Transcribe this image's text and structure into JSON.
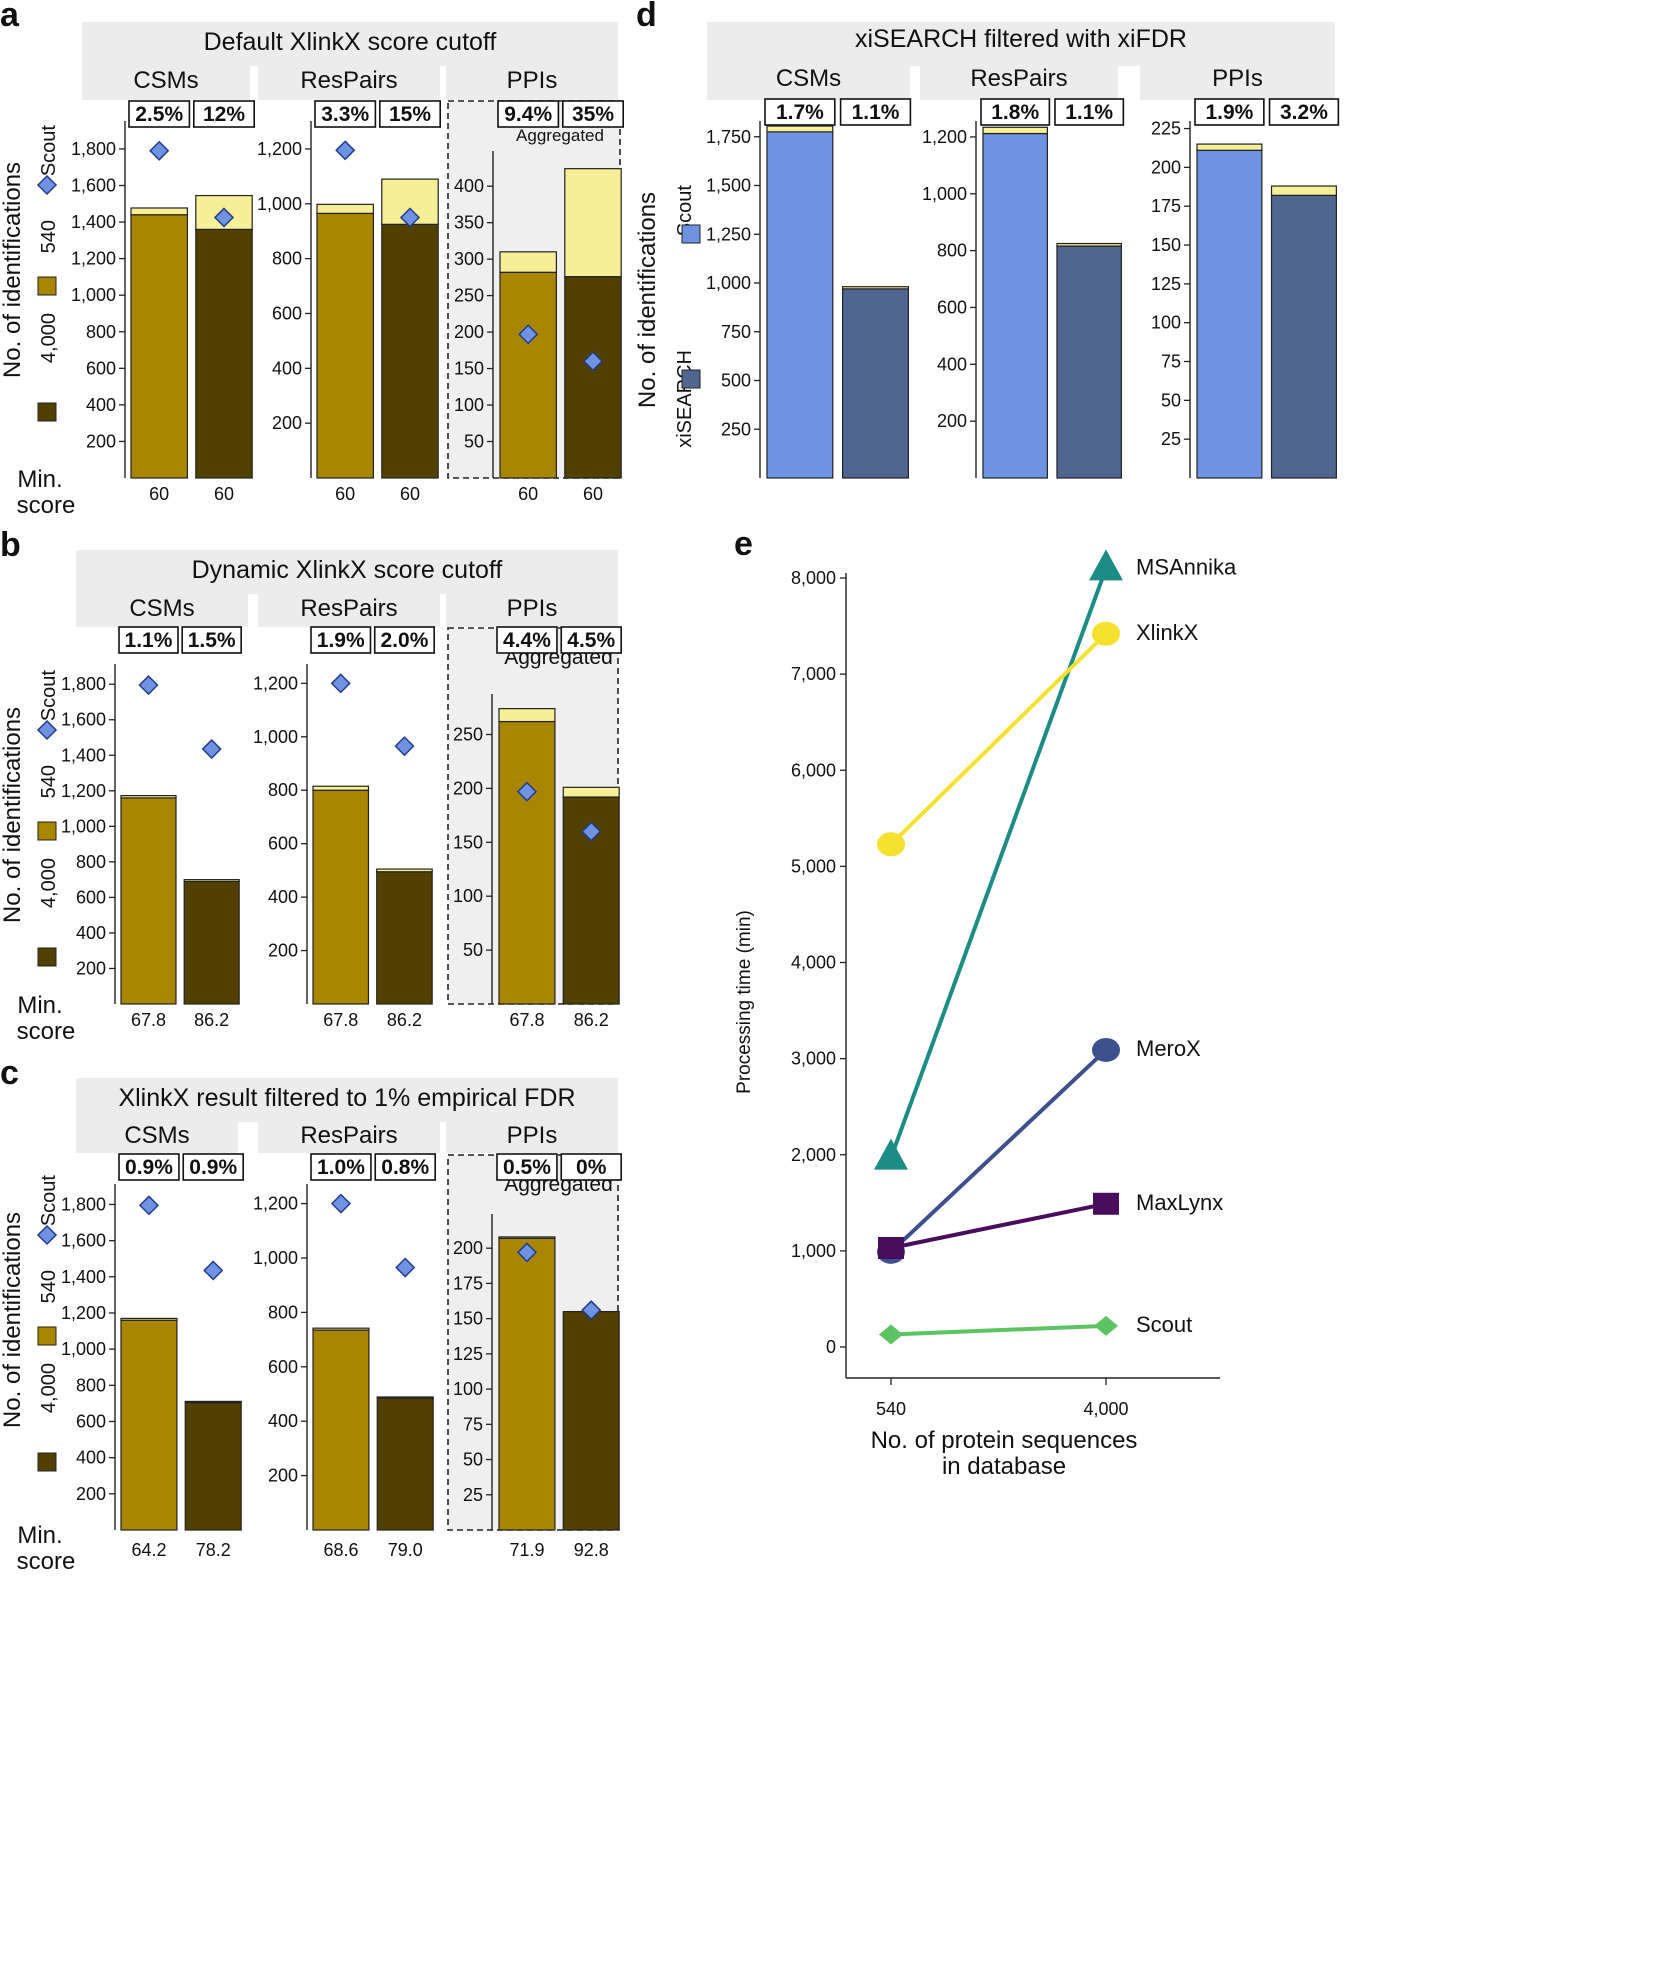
{
  "colors": {
    "gold": "#a88600",
    "pale": "#f7ef98",
    "dark": "#524000",
    "scout": "#6f93e3",
    "xi": "#50658f",
    "header": "#ececec",
    "msannika": "#1b8c86",
    "xlinkx": "#f5e12e",
    "merox": "#3d4f8c",
    "maxlynx": "#480d5c",
    "scoutline": "#5cc461"
  },
  "labels": {
    "no_ids": "No. of identifications",
    "min_score": "Min.",
    "min_score2": "score",
    "scout": "Scout",
    "lib540": "540",
    "lib4000": "4,000",
    "xisearch": "xiSEARCH",
    "aggregated": "Aggregated"
  },
  "chart_data": [
    {
      "panel": "a",
      "type": "bar",
      "title": "Default XlinkX score cutoff",
      "groups": [
        {
          "name": "CSMs",
          "badges": [
            "2.5%",
            "12%"
          ],
          "ticks": [
            200,
            400,
            600,
            800,
            "1,000",
            "1,200",
            "1,400",
            "1,600",
            "1,800"
          ],
          "ymax": 1920,
          "bars": [
            {
              "base": 1440,
              "extra": 37,
              "scout": 1790,
              "score": "60"
            },
            {
              "base": 1360,
              "extra": 185,
              "scout": 1425,
              "score": "60"
            }
          ]
        },
        {
          "name": "ResPairs",
          "badges": [
            "3.3%",
            "15%"
          ],
          "ticks": [
            200,
            400,
            600,
            800,
            "1,000",
            "1,200"
          ],
          "ymax": 1280,
          "bars": [
            {
              "base": 965,
              "extra": 33,
              "scout": 1195,
              "score": "60"
            },
            {
              "name": "",
              "base": 925,
              "extra": 165,
              "scout": 950,
              "score": "60"
            }
          ]
        },
        {
          "name": "PPIs",
          "badges": [
            "9.4%",
            "35%"
          ],
          "ticks": [
            50,
            100,
            150,
            200,
            250,
            300,
            350,
            400
          ],
          "ymax": 440,
          "aggregated": true,
          "bars": [
            {
              "base": 282,
              "extra": 28,
              "scout": 197,
              "score": "60"
            },
            {
              "base": 276,
              "extra": 148,
              "scout": 160,
              "score": "60"
            }
          ]
        }
      ]
    },
    {
      "panel": "b",
      "type": "bar",
      "title": "Dynamic XlinkX score cutoff",
      "groups": [
        {
          "name": "CSMs",
          "badges": [
            "1.1%",
            "1.5%"
          ],
          "ticks": [
            200,
            400,
            600,
            800,
            "1,000",
            "1,200",
            "1,400",
            "1,600",
            "1,800"
          ],
          "ymax": 1880,
          "bars": [
            {
              "base": 1160,
              "extra": 13,
              "scout": 1795,
              "score": "67.8"
            },
            {
              "base": 690,
              "extra": 10,
              "scout": 1435,
              "score": "86.2"
            }
          ]
        },
        {
          "name": "ResPairs",
          "badges": [
            "1.9%",
            "2.0%"
          ],
          "ticks": [
            200,
            400,
            600,
            800,
            "1,000",
            "1,200"
          ],
          "ymax": 1250,
          "bars": [
            {
              "base": 800,
              "extra": 15,
              "scout": 1200,
              "score": "67.8"
            },
            {
              "base": 495,
              "extra": 10,
              "scout": 965,
              "score": "86.2"
            }
          ]
        },
        {
          "name": "PPIs",
          "badges": [
            "4.4%",
            "4.5%"
          ],
          "ticks": [
            50,
            100,
            150,
            200,
            250
          ],
          "ymax": 282,
          "aggregated": true,
          "bars": [
            {
              "base": 262,
              "extra": 12,
              "scout": 197,
              "score": "67.8"
            },
            {
              "base": 192,
              "extra": 9,
              "scout": 160,
              "score": "86.2"
            }
          ]
        }
      ]
    },
    {
      "panel": "c",
      "type": "bar",
      "title": "XlinkX result filtered to 1% empirical FDR",
      "groups": [
        {
          "name": "CSMs",
          "badges": [
            "0.9%",
            "0.9%"
          ],
          "ticks": [
            200,
            400,
            600,
            800,
            "1,000",
            "1,200",
            "1,400",
            "1,600",
            "1,800"
          ],
          "ymax": 1880,
          "bars": [
            {
              "base": 1160,
              "extra": 10,
              "scout": 1795,
              "score": "64.2"
            },
            {
              "base": 705,
              "extra": 6,
              "scout": 1435,
              "score": "78.2"
            }
          ]
        },
        {
          "name": "ResPairs",
          "badges": [
            "1.0%",
            "0.8%"
          ],
          "ticks": [
            200,
            400,
            600,
            800,
            "1,000",
            "1,200"
          ],
          "ymax": 1250,
          "bars": [
            {
              "base": 735,
              "extra": 7,
              "scout": 1200,
              "score": "68.6"
            },
            {
              "base": 485,
              "extra": 4,
              "scout": 965,
              "score": "79.0"
            }
          ]
        },
        {
          "name": "PPIs",
          "badges": [
            "0.5%",
            "0%"
          ],
          "ticks": [
            25,
            50,
            75,
            100,
            125,
            150,
            175,
            200
          ],
          "ymax": 220,
          "aggregated": true,
          "bars": [
            {
              "base": 207,
              "extra": 1,
              "scout": 197,
              "score": "71.9"
            },
            {
              "base": 155,
              "extra": 0,
              "scout": 156,
              "score": "92.8"
            }
          ]
        }
      ]
    },
    {
      "panel": "d",
      "type": "bar",
      "title": "xiSEARCH filtered with xiFDR",
      "groups": [
        {
          "name": "CSMs",
          "badges": [
            "1.7%",
            "1.1%"
          ],
          "ticks": [
            250,
            500,
            750,
            "1,000",
            "1,250",
            "1,500",
            "1,750"
          ],
          "ymax": 1800,
          "bars": [
            {
              "base": 1775,
              "extra": 30,
              "score": ""
            },
            {
              "base": 970,
              "extra": 11,
              "score": ""
            }
          ]
        },
        {
          "name": "ResPairs",
          "badges": [
            "1.8%",
            "1.1%"
          ],
          "ticks": [
            200,
            400,
            600,
            800,
            "1,000",
            "1,200"
          ],
          "ymax": 1235,
          "bars": [
            {
              "base": 1212,
              "extra": 22,
              "score": ""
            },
            {
              "base": 816,
              "extra": 9,
              "score": ""
            }
          ]
        },
        {
          "name": "PPIs",
          "badges": [
            "1.9%",
            "3.2%"
          ],
          "ticks": [
            25,
            50,
            75,
            100,
            125,
            150,
            175,
            200,
            225
          ],
          "ymax": 226,
          "bars": [
            {
              "base": 211,
              "extra": 4,
              "score": ""
            },
            {
              "base": 182,
              "extra": 6,
              "score": ""
            }
          ]
        }
      ]
    },
    {
      "panel": "e",
      "type": "line",
      "xlabel": "No. of protein sequences in database",
      "xlabel_line1": "No. of protein sequences",
      "xlabel_line2": "in database",
      "ylabel": "Processing time (min)",
      "x": [
        "540",
        "4,000"
      ],
      "ylim": [
        0,
        8300
      ],
      "yticks": [
        "0",
        "1,000",
        "2,000",
        "3,000",
        "4,000",
        "5,000",
        "6,000",
        "7,000",
        "8,000"
      ],
      "series": [
        {
          "name": "MSAnnika",
          "values": [
            1970,
            8100
          ],
          "marker": "triangle"
        },
        {
          "name": "XlinkX",
          "values": [
            5230,
            7420
          ],
          "marker": "circle"
        },
        {
          "name": "MeroX",
          "values": [
            990,
            3090
          ],
          "marker": "circle"
        },
        {
          "name": "MaxLynx",
          "values": [
            1030,
            1490
          ],
          "marker": "square"
        },
        {
          "name": "Scout",
          "values": [
            130,
            220
          ],
          "marker": "diamond"
        }
      ]
    }
  ]
}
